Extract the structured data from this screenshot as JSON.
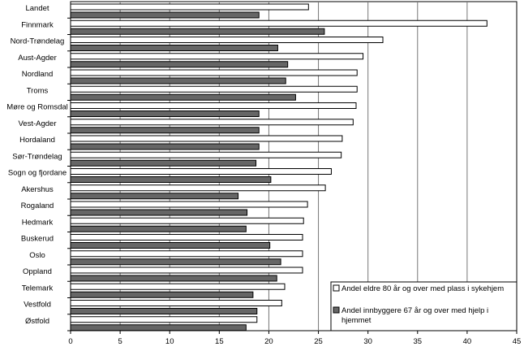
{
  "chart_data": {
    "type": "bar",
    "orientation": "horizontal",
    "categories": [
      "Landet",
      "Finnmark",
      "Nord-Trøndelag",
      "Aust-Agder",
      "Nordland",
      "Troms",
      "Møre og Romsdal",
      "Vest-Agder",
      "Hordaland",
      "Sør-Trøndelag",
      "Sogn og fjordane",
      "Akershus",
      "Rogaland",
      "Hedmark",
      "Buskerud",
      "Oslo",
      "Oppland",
      "Telemark",
      "Vestfold",
      "Østfold"
    ],
    "series": [
      {
        "name": "Andel eldre 80 år og over med plass i sykehjem",
        "color": "#ffffff",
        "values": [
          24.0,
          42.0,
          31.5,
          29.5,
          28.9,
          28.9,
          28.8,
          28.5,
          27.4,
          27.3,
          26.3,
          25.7,
          23.9,
          23.5,
          23.4,
          23.4,
          23.4,
          21.6,
          21.3,
          18.8
        ]
      },
      {
        "name": "Andel innbyggere 67 år og over med hjelp i hjemmet",
        "color": "#666666",
        "values": [
          19.0,
          25.6,
          20.9,
          21.9,
          21.7,
          22.7,
          19.0,
          19.0,
          19.0,
          18.7,
          20.2,
          16.9,
          17.8,
          17.7,
          20.1,
          21.2,
          20.8,
          18.4,
          18.8,
          17.7
        ]
      }
    ],
    "xlim": [
      0,
      45
    ],
    "xticks": [
      "0",
      "5",
      "10",
      "15",
      "20",
      "25",
      "30",
      "35",
      "40",
      "45"
    ],
    "grid": true,
    "legend": "bottom-right"
  }
}
